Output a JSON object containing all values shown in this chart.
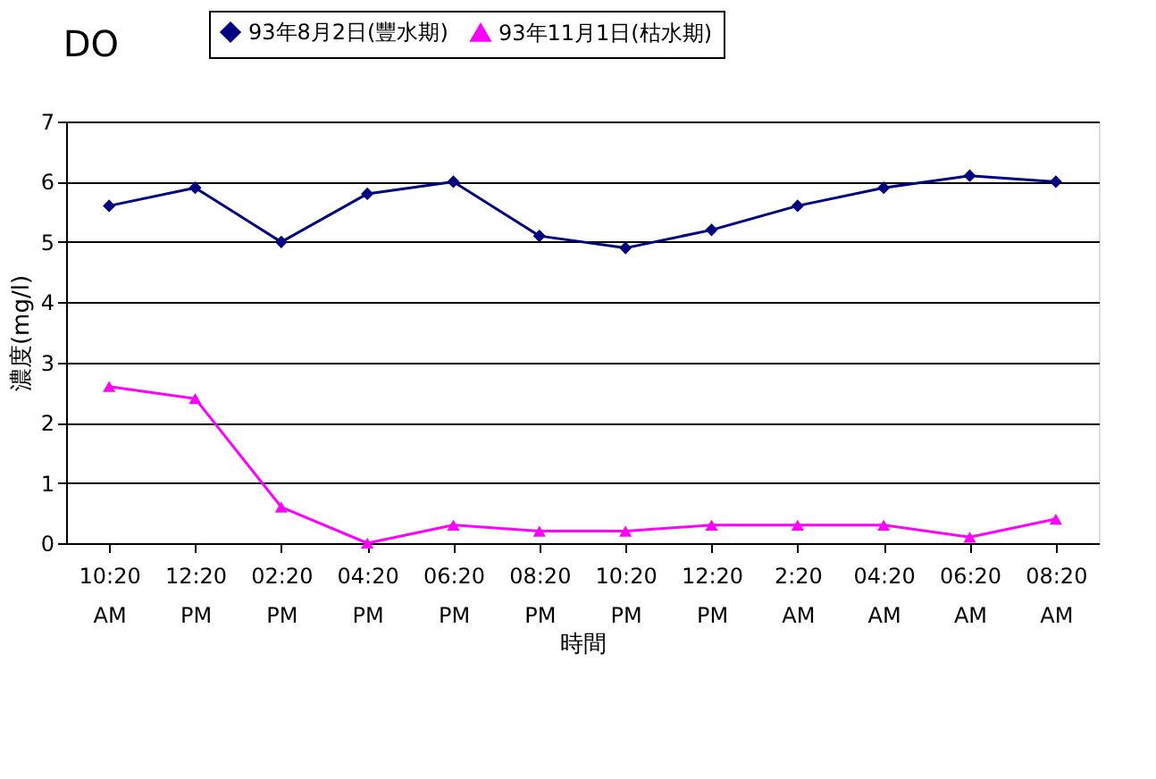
{
  "chart_data": {
    "type": "line",
    "title": "DO",
    "xlabel": "時間",
    "ylabel": "濃度(mg/l)",
    "categories": [
      "10:20 AM",
      "12:20 PM",
      "02:20 PM",
      "04:20 PM",
      "06:20 PM",
      "08:20 PM",
      "10:20 PM",
      "12:20 PM",
      "2:20 AM",
      "04:20 AM",
      "06:20 AM",
      "08:20 AM"
    ],
    "series": [
      {
        "name": "93年8月2日(豐水期)",
        "color": "#000080",
        "marker": "diamond",
        "values": [
          5.6,
          5.9,
          5.0,
          5.8,
          6.0,
          5.1,
          4.9,
          5.2,
          5.6,
          5.9,
          6.1,
          6.0
        ]
      },
      {
        "name": "93年11月1日(枯水期)",
        "color": "#ff00ff",
        "marker": "triangle",
        "values": [
          2.6,
          2.4,
          0.6,
          0.0,
          0.3,
          0.2,
          0.2,
          0.3,
          0.3,
          0.3,
          0.1,
          0.4
        ]
      }
    ],
    "ylim": [
      0,
      7
    ],
    "yticks": [
      0,
      1,
      2,
      3,
      4,
      5,
      6,
      7
    ],
    "grid": "y",
    "legend": "top",
    "line_style": "solid"
  }
}
